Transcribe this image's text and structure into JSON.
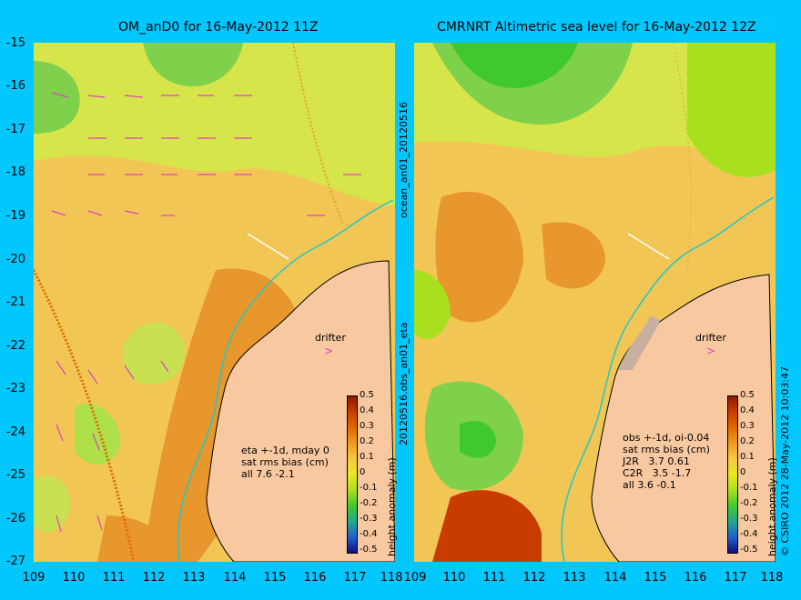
{
  "titles": {
    "left": "OM_anD0 for 16-May-2012 11Z",
    "right": "CMRNRT Altimetric sea level  for 16-May-2012 12Z"
  },
  "y_labels": [
    "-15",
    "-16",
    "-17",
    "-18",
    "-19",
    "-20",
    "-21",
    "-22",
    "-23",
    "-24",
    "-25",
    "-26",
    "-27"
  ],
  "x_labels_left": [
    "109",
    "110",
    "111",
    "112",
    "113",
    "114",
    "115",
    "116",
    "117",
    "118"
  ],
  "x_labels_right": [
    "109",
    "110",
    "111",
    "112",
    "113",
    "114",
    "115",
    "116",
    "117",
    "118"
  ],
  "center_labels": {
    "top": "ocean_an01_20120516",
    "bottom": "20120516.obs_an01_eta"
  },
  "right_margin_label": "© CSIRO 2012   28-May-2012 10:03:47",
  "drifter_label": "drifter",
  "left_info": "eta +-1d, mday 0\nsat rms bias (cm)\nall 7.6 -2.1",
  "right_info": "obs +-1d, oi-0.04\nsat rms bias (cm)\nJ2R   3.7 0.61\nC2R   3.5 -1.7\nall 3.6 -0.1",
  "colorbar": {
    "label": "height anomaly (m)",
    "ticks": [
      "0.5",
      "0.4",
      "0.3",
      "0.2",
      "0.1",
      "0",
      "-0.1",
      "-0.2",
      "-0.3",
      "-0.4",
      "-0.5"
    ],
    "colors": [
      "#8b1a00",
      "#c83c00",
      "#e06a00",
      "#f09a20",
      "#f8c840",
      "#e8e820",
      "#a8e020",
      "#40c830",
      "#20a890",
      "#2060d0",
      "#101080"
    ]
  },
  "colors": {
    "background": "#00c8ff",
    "land": "#f8c8a0",
    "vectors": "#e040c0"
  }
}
